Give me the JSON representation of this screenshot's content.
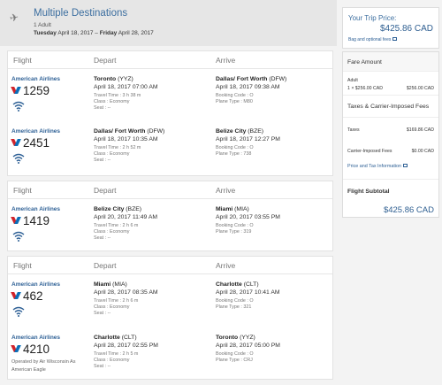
{
  "header": {
    "title": "Multiple Destinations",
    "passengers": "1 Adult",
    "dates_start_day": "Tuesday",
    "dates_start": "April 18, 2017",
    "dates_sep": "–",
    "dates_end_day": "Friday",
    "dates_end": "April 28, 2017"
  },
  "columns": {
    "flight": "Flight",
    "depart": "Depart",
    "arrive": "Arrive"
  },
  "cards": [
    {
      "segments": [
        {
          "airline": "American Airlines",
          "flight_no": "1259",
          "dep_city": "Toronto",
          "dep_code": "(YYZ)",
          "dep_time": "April 18, 2017 07:00 AM",
          "travel_time": "Travel Time : 3 h 38 m",
          "class": "Class : Economy",
          "seat": "Seat : --",
          "arr_city": "Dallas/ Fort Worth",
          "arr_code": "(DFW)",
          "arr_time": "April 18, 2017 09:38 AM",
          "booking_code": "Booking Code : O",
          "plane_type": "Plane Type : M80"
        },
        {
          "airline": "American Airlines",
          "flight_no": "2451",
          "dep_city": "Dallas/ Fort Worth",
          "dep_code": "(DFW)",
          "dep_time": "April 18, 2017 10:35 AM",
          "travel_time": "Travel Time : 2 h 52 m",
          "class": "Class : Economy",
          "seat": "Seat : --",
          "arr_city": "Belize City",
          "arr_code": "(BZE)",
          "arr_time": "April 18, 2017 12:27 PM",
          "booking_code": "Booking Code : O",
          "plane_type": "Plane Type : 738"
        }
      ]
    },
    {
      "segments": [
        {
          "airline": "American Airlines",
          "flight_no": "1419",
          "dep_city": "Belize City",
          "dep_code": "(BZE)",
          "dep_time": "April 20, 2017 11:49 AM",
          "travel_time": "Travel Time : 2 h 6 m",
          "class": "Class : Economy",
          "seat": "Seat : --",
          "arr_city": "Miami",
          "arr_code": "(MIA)",
          "arr_time": "April 20, 2017 03:55 PM",
          "booking_code": "Booking Code : O",
          "plane_type": "Plane Type : 319"
        }
      ]
    },
    {
      "segments": [
        {
          "airline": "American Airlines",
          "flight_no": "462",
          "dep_city": "Miami",
          "dep_code": "(MIA)",
          "dep_time": "April 28, 2017 08:35 AM",
          "travel_time": "Travel Time : 2 h 6 m",
          "class": "Class : Economy",
          "seat": "Seat : --",
          "arr_city": "Charlotte",
          "arr_code": "(CLT)",
          "arr_time": "April 28, 2017 10:41 AM",
          "booking_code": "Booking Code : O",
          "plane_type": "Plane Type : 321"
        },
        {
          "airline": "American Airlines",
          "flight_no": "4210",
          "operated_by": "Operated by Air Wisconsin As American Eagle",
          "dep_city": "Charlotte",
          "dep_code": "(CLT)",
          "dep_time": "April 28, 2017 02:55 PM",
          "travel_time": "Travel Time : 2 h 5 m",
          "class": "Class : Economy",
          "seat": "Seat : --",
          "arr_city": "Toronto",
          "arr_code": "(YYZ)",
          "arr_time": "April 28, 2017 05:00 PM",
          "booking_code": "Booking Code : O",
          "plane_type": "Plane Type : CRJ"
        }
      ]
    }
  ],
  "trip": {
    "label": "Your Trip Price:",
    "price": "$425.86 CAD",
    "bag_link": "Bag and optional fees"
  },
  "fare": {
    "fare_amount_title": "Fare Amount",
    "adult_label": "Adult",
    "adult_calc": "1 × $256.00 CAD",
    "adult_total": "$256.00 CAD",
    "taxes_title": "Taxes & Carrier-Imposed Fees",
    "taxes_label": "Taxes",
    "taxes_value": "$169.86 CAD",
    "carrier_label": "Carrier-Imposed Fees",
    "carrier_value": "$0.00 CAD",
    "info_link": "Price and Tax Information",
    "subtotal_title": "Flight Subtotal",
    "subtotal_value": "$425.86 CAD"
  },
  "colors": {
    "brand_blue": "#2f6196",
    "aa_red": "#d0242b",
    "aa_blue": "#0b6fb8"
  }
}
